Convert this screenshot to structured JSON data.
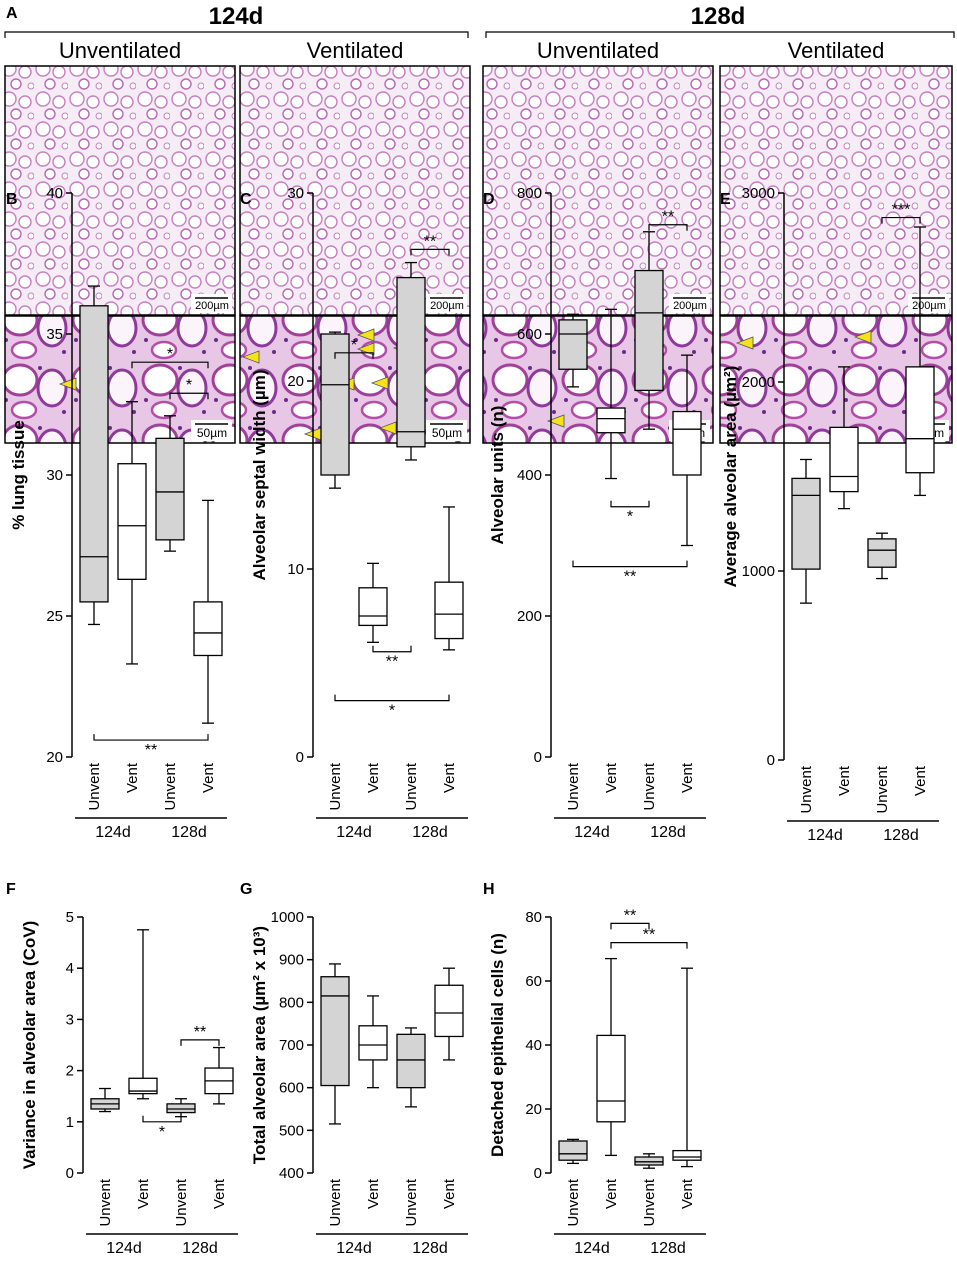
{
  "panel_a": {
    "label": "A",
    "groups": [
      {
        "title": "124d",
        "columns": [
          "Unventilated",
          "Ventilated"
        ]
      },
      {
        "title": "128d",
        "columns": [
          "Unventilated",
          "Ventilated"
        ]
      }
    ],
    "scale_bars": [
      "200µm",
      "50µm"
    ]
  },
  "chart_data": [
    {
      "type": "box",
      "panel": "B",
      "y_label": "% lung tissue",
      "categories": [
        "Unvent",
        "Vent",
        "Unvent",
        "Vent"
      ],
      "groups": [
        "124d",
        "128d"
      ],
      "box_colors": [
        "#d4d4d4",
        "#ffffff",
        "#d4d4d4",
        "#ffffff"
      ],
      "ylim": [
        20,
        40
      ],
      "yticks": [
        20,
        25,
        30,
        35,
        40
      ],
      "boxes": [
        {
          "min": 24.7,
          "q1": 25.5,
          "median": 27.1,
          "q3": 36,
          "max": 36.7
        },
        {
          "min": 23.3,
          "q1": 26.3,
          "median": 28.2,
          "q3": 30.4,
          "max": 32.6
        },
        {
          "min": 27.3,
          "q1": 27.7,
          "median": 29.4,
          "q3": 31.3,
          "max": 32.1
        },
        {
          "min": 21.2,
          "q1": 23.6,
          "median": 24.4,
          "q3": 25.5,
          "max": 29.1
        }
      ],
      "annotations": [
        {
          "text": "*",
          "from": 1,
          "to": 3,
          "y": 34
        },
        {
          "text": "*",
          "from": 2,
          "to": 3,
          "y": 32.9
        },
        {
          "text": "**",
          "from": 0,
          "to": 3,
          "y": 20.6
        }
      ]
    },
    {
      "type": "box",
      "panel": "C",
      "y_label": "Alveolar septal width (µm)",
      "categories": [
        "Unvent",
        "Vent",
        "Unvent",
        "Vent"
      ],
      "groups": [
        "124d",
        "128d"
      ],
      "box_colors": [
        "#d4d4d4",
        "#ffffff",
        "#d4d4d4",
        "#ffffff"
      ],
      "ylim": [
        0,
        30
      ],
      "yticks": [
        0,
        10,
        20,
        30
      ],
      "boxes": [
        {
          "min": 14.3,
          "q1": 15,
          "median": 19.8,
          "q3": 22.5,
          "max": 22.6
        },
        {
          "min": 6.1,
          "q1": 7,
          "median": 7.5,
          "q3": 9,
          "max": 10.3
        },
        {
          "min": 15.8,
          "q1": 16.5,
          "median": 17.3,
          "q3": 25.5,
          "max": 26.3
        },
        {
          "min": 5.7,
          "q1": 6.3,
          "median": 7.6,
          "q3": 9.3,
          "max": 13.3
        }
      ],
      "annotations": [
        {
          "text": "*",
          "from": 0,
          "to": 1,
          "y": 21.5
        },
        {
          "text": "**",
          "from": 2,
          "to": 3,
          "y": 27
        },
        {
          "text": "**",
          "from": 1,
          "to": 2,
          "y": 5.6
        },
        {
          "text": "*",
          "from": 0,
          "to": 3,
          "y": 3
        }
      ]
    },
    {
      "type": "box",
      "panel": "D",
      "y_label": "Alveolar units (n)",
      "categories": [
        "Unvent",
        "Vent",
        "Unvent",
        "Vent"
      ],
      "groups": [
        "124d",
        "128d"
      ],
      "box_colors": [
        "#d4d4d4",
        "#ffffff",
        "#d4d4d4",
        "#ffffff"
      ],
      "ylim": [
        0,
        800
      ],
      "yticks": [
        0,
        200,
        400,
        600,
        800
      ],
      "boxes": [
        {
          "min": 525,
          "q1": 550,
          "median": 600,
          "q3": 620,
          "max": 628
        },
        {
          "min": 395,
          "q1": 460,
          "median": 480,
          "q3": 495,
          "max": 635
        },
        {
          "min": 465,
          "q1": 520,
          "median": 630,
          "q3": 690,
          "max": 745
        },
        {
          "min": 300,
          "q1": 400,
          "median": 465,
          "q3": 490,
          "max": 570
        }
      ],
      "annotations": [
        {
          "text": "**",
          "from": 2,
          "to": 3,
          "y": 755
        },
        {
          "text": "*",
          "from": 1,
          "to": 2,
          "y": 355
        },
        {
          "text": "**",
          "from": 0,
          "to": 3,
          "y": 270
        }
      ]
    },
    {
      "type": "box",
      "panel": "E",
      "y_label": "Average alveolar area (µm²)",
      "categories": [
        "Unvent",
        "Vent",
        "Unvent",
        "Vent"
      ],
      "groups": [
        "124d",
        "128d"
      ],
      "box_colors": [
        "#d4d4d4",
        "#ffffff",
        "#d4d4d4",
        "#ffffff"
      ],
      "ylim": [
        0,
        3000
      ],
      "yticks": [
        0,
        1000,
        2000,
        3000
      ],
      "boxes": [
        {
          "min": 830,
          "q1": 1010,
          "median": 1400,
          "q3": 1490,
          "max": 1590
        },
        {
          "min": 1330,
          "q1": 1420,
          "median": 1500,
          "q3": 1760,
          "max": 2080
        },
        {
          "min": 960,
          "q1": 1020,
          "median": 1110,
          "q3": 1170,
          "max": 1200
        },
        {
          "min": 1400,
          "q1": 1520,
          "median": 1700,
          "q3": 2080,
          "max": 2820
        }
      ],
      "annotations": [
        {
          "text": "***",
          "from": 2,
          "to": 3,
          "y": 2870
        }
      ]
    },
    {
      "type": "box",
      "panel": "F",
      "y_label": "Variance in alveolar area (CoV)",
      "categories": [
        "Unvent",
        "Vent",
        "Unvent",
        "Vent"
      ],
      "groups": [
        "124d",
        "128d"
      ],
      "box_colors": [
        "#d4d4d4",
        "#ffffff",
        "#d4d4d4",
        "#ffffff"
      ],
      "ylim": [
        0,
        5
      ],
      "yticks": [
        0,
        1,
        2,
        3,
        4,
        5
      ],
      "boxes": [
        {
          "min": 1.2,
          "q1": 1.25,
          "median": 1.35,
          "q3": 1.45,
          "max": 1.65
        },
        {
          "min": 1.45,
          "q1": 1.55,
          "median": 1.6,
          "q3": 1.85,
          "max": 4.75
        },
        {
          "min": 1.1,
          "q1": 1.18,
          "median": 1.25,
          "q3": 1.35,
          "max": 1.45
        },
        {
          "min": 1.35,
          "q1": 1.55,
          "median": 1.8,
          "q3": 2.05,
          "max": 2.45
        }
      ],
      "annotations": [
        {
          "text": "**",
          "from": 2,
          "to": 3,
          "y": 2.6
        },
        {
          "text": "*",
          "from": 1,
          "to": 2,
          "y": 1
        }
      ]
    },
    {
      "type": "box",
      "panel": "G",
      "y_label": "Total alveolar area (µm² x 10³)",
      "categories": [
        "Unvent",
        "Vent",
        "Unvent",
        "Vent"
      ],
      "groups": [
        "124d",
        "128d"
      ],
      "box_colors": [
        "#d4d4d4",
        "#ffffff",
        "#d4d4d4",
        "#ffffff"
      ],
      "ylim": [
        400,
        1000
      ],
      "yticks": [
        400,
        500,
        600,
        700,
        800,
        900,
        1000
      ],
      "boxes": [
        {
          "min": 515,
          "q1": 605,
          "median": 815,
          "q3": 860,
          "max": 890
        },
        {
          "min": 600,
          "q1": 665,
          "median": 700,
          "q3": 745,
          "max": 815
        },
        {
          "min": 555,
          "q1": 600,
          "median": 665,
          "q3": 725,
          "max": 740
        },
        {
          "min": 665,
          "q1": 720,
          "median": 775,
          "q3": 840,
          "max": 880
        }
      ],
      "annotations": []
    },
    {
      "type": "box",
      "panel": "H",
      "y_label": "Detached epithelial cells (n)",
      "categories": [
        "Unvent",
        "Vent",
        "Unvent",
        "Vent"
      ],
      "groups": [
        "124d",
        "128d"
      ],
      "box_colors": [
        "#d4d4d4",
        "#ffffff",
        "#d4d4d4",
        "#ffffff"
      ],
      "ylim": [
        0,
        80
      ],
      "yticks": [
        0,
        20,
        40,
        60,
        80
      ],
      "boxes": [
        {
          "min": 3,
          "q1": 4,
          "median": 6,
          "q3": 10,
          "max": 10.5
        },
        {
          "min": 5.5,
          "q1": 16,
          "median": 22.5,
          "q3": 43,
          "max": 67
        },
        {
          "min": 1.5,
          "q1": 2.5,
          "median": 3.5,
          "q3": 5,
          "max": 6
        },
        {
          "min": 2,
          "q1": 4,
          "median": 5,
          "q3": 7,
          "max": 64
        }
      ],
      "annotations": [
        {
          "text": "**",
          "from": 1,
          "to": 2,
          "y": 78
        },
        {
          "text": "**",
          "from": 1,
          "to": 3,
          "y": 72
        }
      ]
    }
  ]
}
